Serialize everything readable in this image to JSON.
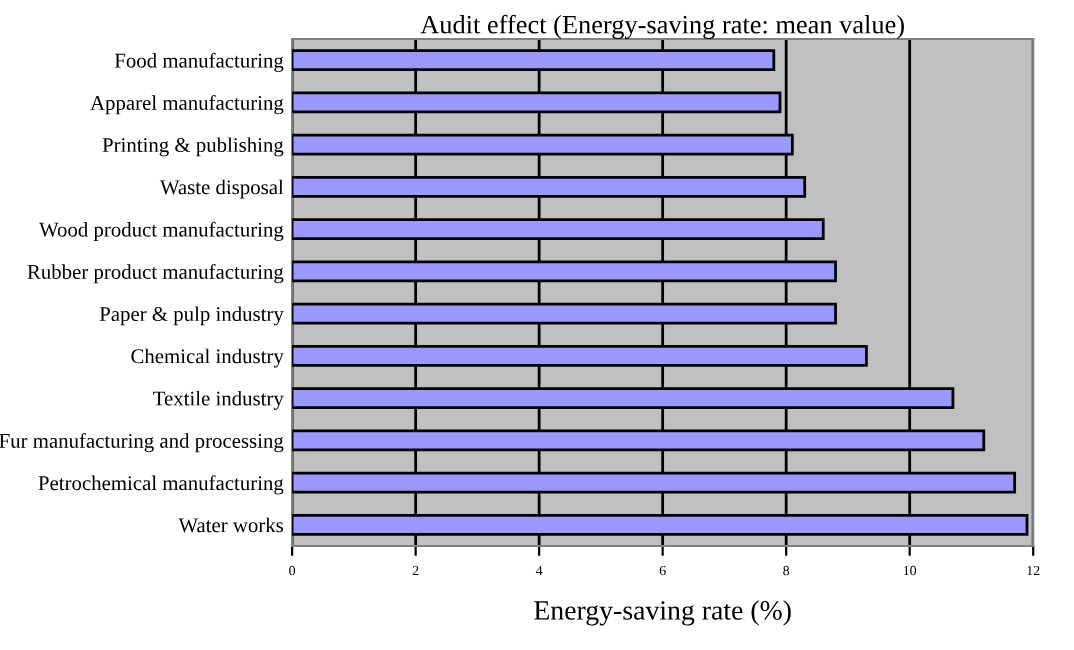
{
  "chart_data": {
    "type": "bar",
    "orientation": "horizontal",
    "title": "Audit effect (Energy-saving rate: mean value)",
    "xlabel": "Energy-saving rate (%)",
    "categories": [
      "Food manufacturing",
      "Apparel manufacturing",
      "Printing & publishing",
      "Waste disposal",
      "Wood product manufacturing",
      "Rubber product manufacturing",
      "Paper & pulp industry",
      "Chemical industry",
      "Textile industry",
      "Fur manufacturing and processing",
      "Petrochemical manufacturing",
      "Water works"
    ],
    "values": [
      7.8,
      7.9,
      8.1,
      8.3,
      8.6,
      8.8,
      8.8,
      9.3,
      10.7,
      11.2,
      11.7,
      11.9
    ],
    "color": "#9999ff",
    "xlim": [
      0,
      12
    ],
    "xticks": [
      0,
      2,
      4,
      6,
      8,
      10,
      12
    ],
    "grid": "x",
    "legend": false
  }
}
